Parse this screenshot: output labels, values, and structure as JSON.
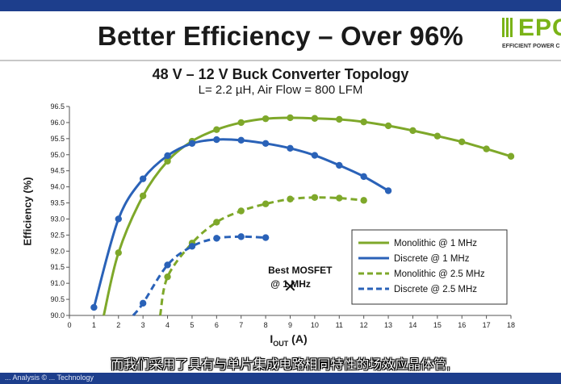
{
  "slide": {
    "title": "Better Efficiency – Over 96%",
    "logo_text": "EPC",
    "logo_tagline": "EFFICIENT POWER C"
  },
  "caption": "而我们采用了具有与单片集成电路相同特性的场效应晶体管,",
  "footer_text": "... Analysis © ... Technology",
  "chart_data": {
    "type": "line",
    "title": "48 V – 12 V Buck Converter Topology",
    "subtitle": "L= 2.2 µH, Air Flow = 800 LFM",
    "xlabel_main": "I",
    "xlabel_sub": "OUT",
    "xlabel_unit": " (A)",
    "ylabel": "Efficiency (%)",
    "xlim": [
      0,
      18
    ],
    "ylim": [
      90.0,
      96.5
    ],
    "x_ticks": [
      "0",
      "1",
      "2",
      "3",
      "4",
      "5",
      "6",
      "7",
      "8",
      "9",
      "10",
      "11",
      "12",
      "13",
      "14",
      "15",
      "16",
      "17",
      "18"
    ],
    "y_ticks": [
      "90.0",
      "90.5",
      "91.0",
      "91.5",
      "92.0",
      "92.5",
      "93.0",
      "93.5",
      "94.0",
      "94.5",
      "95.0",
      "95.5",
      "96.0",
      "96.5"
    ],
    "grid": false,
    "legend_position": "bottom-right",
    "series": [
      {
        "name": "Monolithic @ 1 MHz",
        "color": "#7ea82a",
        "style": "solid",
        "start": [
          1.4,
          90.0
        ],
        "x": [
          2,
          3,
          4,
          5,
          6,
          7,
          8,
          9,
          10,
          11,
          12,
          13,
          14,
          15,
          16,
          17,
          18
        ],
        "y": [
          91.95,
          93.72,
          94.8,
          95.42,
          95.78,
          96.0,
          96.12,
          96.15,
          96.13,
          96.1,
          96.02,
          95.9,
          95.75,
          95.58,
          95.4,
          95.18,
          94.95
        ]
      },
      {
        "name": "Discrete @ 1 MHz",
        "color": "#2a62b8",
        "style": "solid",
        "start": null,
        "x": [
          1,
          2,
          3,
          4,
          5,
          6,
          7,
          8,
          9,
          10,
          11,
          12,
          13
        ],
        "y": [
          90.25,
          93.0,
          94.25,
          94.97,
          95.35,
          95.47,
          95.45,
          95.35,
          95.2,
          94.98,
          94.67,
          94.32,
          93.88
        ]
      },
      {
        "name": "Monolithic @ 2.5 MHz",
        "color": "#7ea82a",
        "style": "dashed",
        "start": [
          3.7,
          90.0
        ],
        "x": [
          4,
          5,
          6,
          7,
          8,
          9,
          10,
          11,
          12
        ],
        "y": [
          91.2,
          92.25,
          92.9,
          93.25,
          93.47,
          93.62,
          93.67,
          93.65,
          93.58
        ]
      },
      {
        "name": "Discrete @ 2.5 MHz",
        "color": "#2a62b8",
        "style": "dashed",
        "start": [
          2.6,
          90.0
        ],
        "x": [
          3,
          4,
          5,
          6,
          7,
          8
        ],
        "y": [
          90.38,
          91.57,
          92.15,
          92.4,
          92.45,
          92.42
        ]
      }
    ],
    "annotation": {
      "line1": "Best MOSFET",
      "line2": "@ 1 MHz",
      "marker": "✕",
      "x": 9.0,
      "y": 90.9
    }
  }
}
